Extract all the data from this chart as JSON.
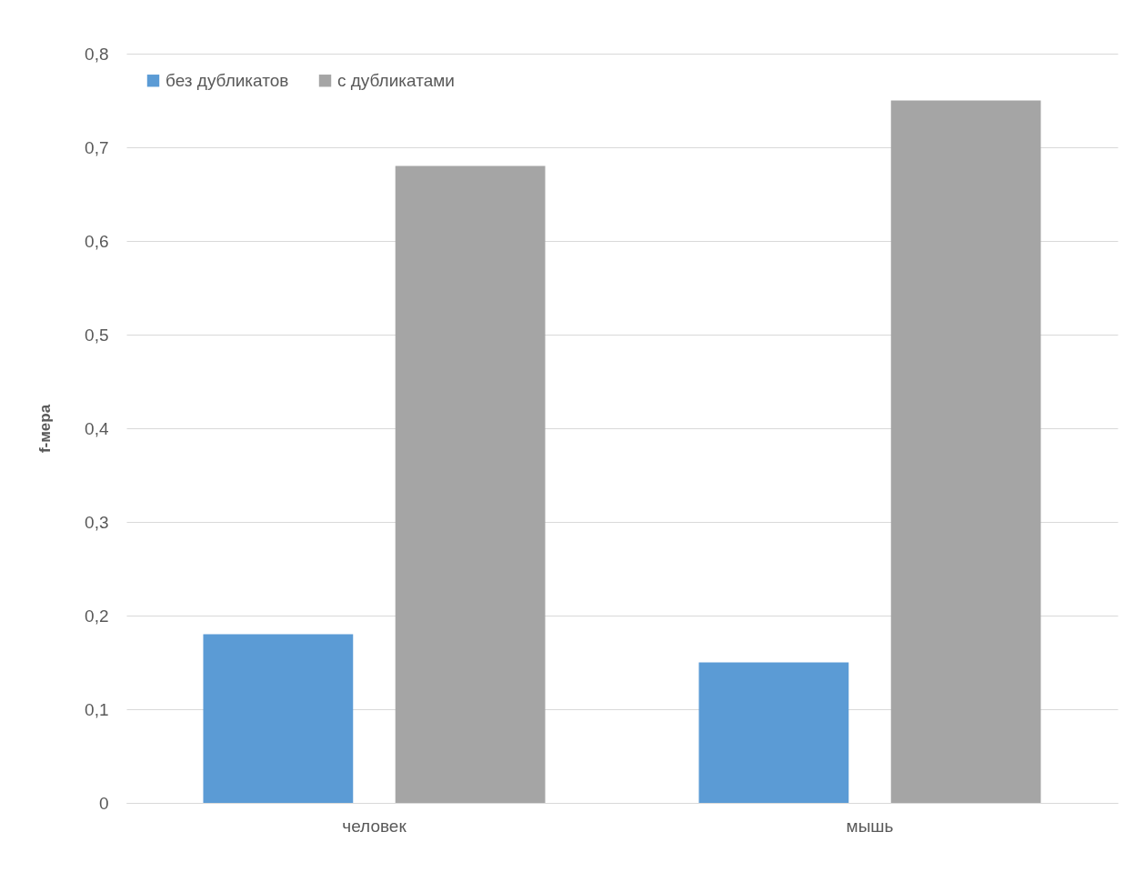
{
  "chart_data": {
    "type": "bar",
    "ylabel": "f-мера",
    "categories": [
      "человек",
      "мышь"
    ],
    "series": [
      {
        "name": "без дубликатов",
        "color": "#5b9bd5",
        "values": [
          0.18,
          0.15
        ]
      },
      {
        "name": "с дубликатами",
        "color": "#a5a5a5",
        "values": [
          0.68,
          0.75
        ]
      }
    ],
    "ylim": [
      0,
      0.8
    ],
    "yticks": [
      {
        "value": 0,
        "label": "0"
      },
      {
        "value": 0.1,
        "label": "0,1"
      },
      {
        "value": 0.2,
        "label": "0,2"
      },
      {
        "value": 0.3,
        "label": "0,3"
      },
      {
        "value": 0.4,
        "label": "0,4"
      },
      {
        "value": 0.5,
        "label": "0,5"
      },
      {
        "value": 0.6,
        "label": "0,6"
      },
      {
        "value": 0.7,
        "label": "0,7"
      },
      {
        "value": 0.8,
        "label": "0,8"
      }
    ],
    "grid": "y",
    "legend": "top left"
  }
}
